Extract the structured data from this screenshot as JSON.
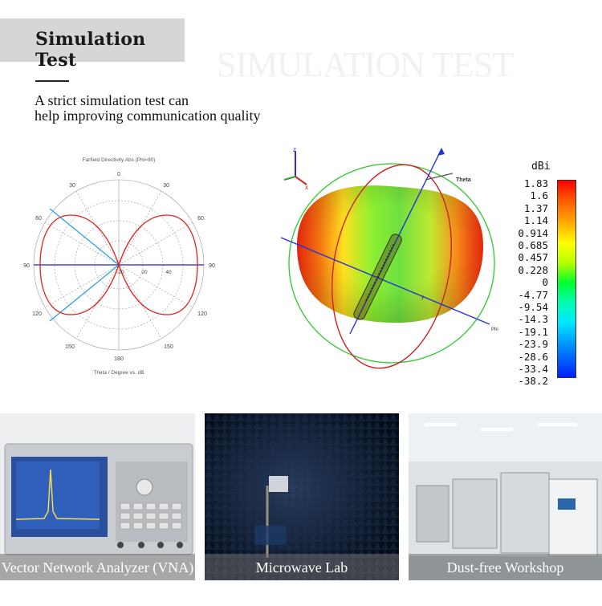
{
  "header": {
    "title": "Simulation Test",
    "watermark": "SIMULATION TEST",
    "intro_line1": "A strict simulation test can",
    "intro_line2": "help improving communication quality"
  },
  "polar_plot": {
    "title": "Farfield Directivity Abs (Phi=90)",
    "xlabel": "Theta / Degree vs. dB",
    "angle_labels": [
      "0",
      "30",
      "30",
      "60",
      "60",
      "90",
      "90",
      "120",
      "120",
      "150",
      "150",
      "180"
    ],
    "radial_labels": [
      "-20",
      "20",
      "40"
    ],
    "colors": {
      "pattern": "#e02020",
      "beam": "#2aa0e0",
      "axis": "#2222cc"
    }
  },
  "radiation_3d": {
    "axis_z": "z",
    "axis_x": "x",
    "axis_y": "y",
    "theta_label": "Theta",
    "phi_label": "Phi"
  },
  "color_scale": {
    "unit": "dBi",
    "ticks": [
      "1.83",
      "1.6",
      "1.37",
      "1.14",
      "0.914",
      "0.685",
      "0.457",
      "0.228",
      "0",
      "-4.77",
      "-9.54",
      "-14.3",
      "-19.1",
      "-23.9",
      "-28.6",
      "-33.4",
      "-38.2"
    ]
  },
  "gallery": [
    {
      "caption": "Vector Network Analyzer (VNA)"
    },
    {
      "caption": "Microwave Lab"
    },
    {
      "caption": "Dust-free Workshop"
    }
  ]
}
